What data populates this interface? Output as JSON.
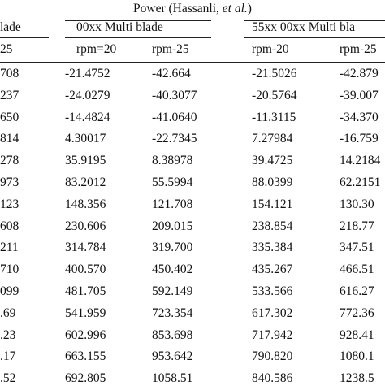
{
  "header": {
    "super_title_prefix": "Power (Hassanli, ",
    "super_title_italic": "et al.",
    "super_title_suffix": ")",
    "groups": [
      "lade",
      "00xx Multi blade",
      "55xx 00xx Multi bla"
    ],
    "columns": [
      "25",
      "rpm=20",
      "rpm-25",
      "rpm-20",
      "rpm-25"
    ]
  },
  "rows": [
    [
      "708",
      "-21.4752",
      "-42.664",
      "-21.5026",
      "-42.879"
    ],
    [
      "237",
      "-24.0279",
      "-40.3077",
      "-20.5764",
      "-39.007"
    ],
    [
      "650",
      "-14.4824",
      "-41.0640",
      "-11.3115",
      "-34.370"
    ],
    [
      "814",
      "4.30017",
      "-22.7345",
      "7.27984",
      "-16.759"
    ],
    [
      "278",
      "35.9195",
      "8.38978",
      "39.4725",
      "14.2184"
    ],
    [
      "973",
      "83.2012",
      "55.5994",
      "88.0399",
      "62.2151"
    ],
    [
      "123",
      "148.356",
      "121.708",
      "154.121",
      "130.30"
    ],
    [
      "608",
      "230.606",
      "209.015",
      "238.854",
      "218.77"
    ],
    [
      "211",
      "314.784",
      "319.700",
      "335.384",
      "347.51"
    ],
    [
      "710",
      "400.570",
      "450.402",
      "435.267",
      "466.51"
    ],
    [
      "099",
      "481.705",
      "592.149",
      "533.566",
      "616.27"
    ],
    [
      ".69",
      "541.959",
      "723.354",
      "617.302",
      "772.36"
    ],
    [
      ".23",
      "602.996",
      "853.698",
      "717.942",
      "928.41"
    ],
    [
      ".17",
      "663.155",
      "953.642",
      "790.820",
      "1080.1"
    ],
    [
      ".52",
      "692.805",
      "1058.51",
      "840.586",
      "1238.5"
    ]
  ]
}
